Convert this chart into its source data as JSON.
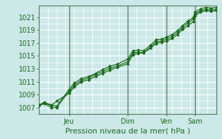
{
  "bg_color": "#cce8e8",
  "plot_bg_color": "#cce8e8",
  "grid_color": "#ffffff",
  "vgrid_color": "#c8d8d8",
  "line_color": "#1a6b1a",
  "marker_color": "#1a6b1a",
  "xlabel": "Pression niveau de la mer( hPa )",
  "xlabel_fontsize": 8,
  "ylabel_fontsize": 7,
  "tick_label_color": "#1a6b1a",
  "yticks": [
    1007,
    1009,
    1011,
    1013,
    1015,
    1017,
    1019,
    1021
  ],
  "ylim": [
    1006.0,
    1022.8
  ],
  "xlim": [
    0,
    100
  ],
  "vline_positions": [
    17,
    50,
    72,
    88
  ],
  "vline_labels": [
    "Jeu",
    "Dim",
    "Ven",
    "Sam"
  ],
  "vline_color": "#557755",
  "series1": [
    [
      0,
      1007.3
    ],
    [
      3,
      1007.7
    ],
    [
      7,
      1007.3
    ],
    [
      10,
      1008.0
    ],
    [
      17,
      1009.2
    ],
    [
      20,
      1010.2
    ],
    [
      24,
      1011.0
    ],
    [
      28,
      1011.3
    ],
    [
      32,
      1011.8
    ],
    [
      36,
      1012.3
    ],
    [
      40,
      1012.8
    ],
    [
      44,
      1013.2
    ],
    [
      50,
      1013.8
    ],
    [
      53,
      1015.2
    ],
    [
      56,
      1015.4
    ],
    [
      59,
      1015.5
    ],
    [
      63,
      1016.2
    ],
    [
      66,
      1016.9
    ],
    [
      69,
      1017.1
    ],
    [
      72,
      1017.3
    ],
    [
      75,
      1017.7
    ],
    [
      78,
      1018.3
    ],
    [
      81,
      1019.1
    ],
    [
      84,
      1019.7
    ],
    [
      87,
      1020.3
    ],
    [
      88,
      1021.2
    ],
    [
      91,
      1021.8
    ],
    [
      94,
      1022.0
    ],
    [
      97,
      1021.9
    ],
    [
      100,
      1022.0
    ]
  ],
  "series2": [
    [
      0,
      1007.3
    ],
    [
      3,
      1007.6
    ],
    [
      7,
      1007.0
    ],
    [
      10,
      1007.0
    ],
    [
      17,
      1009.5
    ],
    [
      20,
      1010.5
    ],
    [
      24,
      1011.2
    ],
    [
      28,
      1011.6
    ],
    [
      32,
      1012.1
    ],
    [
      36,
      1012.6
    ],
    [
      40,
      1013.1
    ],
    [
      44,
      1013.4
    ],
    [
      50,
      1014.1
    ],
    [
      53,
      1015.5
    ],
    [
      56,
      1015.6
    ],
    [
      59,
      1015.5
    ],
    [
      63,
      1016.4
    ],
    [
      66,
      1017.2
    ],
    [
      69,
      1017.3
    ],
    [
      72,
      1017.6
    ],
    [
      75,
      1018.0
    ],
    [
      78,
      1018.6
    ],
    [
      81,
      1019.4
    ],
    [
      84,
      1020.1
    ],
    [
      87,
      1020.7
    ],
    [
      88,
      1021.5
    ],
    [
      91,
      1022.0
    ],
    [
      94,
      1022.2
    ],
    [
      97,
      1022.1
    ],
    [
      100,
      1022.2
    ]
  ],
  "series3": [
    [
      0,
      1007.4
    ],
    [
      3,
      1007.8
    ],
    [
      7,
      1007.4
    ],
    [
      10,
      1007.2
    ],
    [
      17,
      1009.8
    ],
    [
      20,
      1010.8
    ],
    [
      24,
      1011.5
    ],
    [
      28,
      1011.8
    ],
    [
      32,
      1012.3
    ],
    [
      36,
      1012.9
    ],
    [
      40,
      1013.4
    ],
    [
      44,
      1013.7
    ],
    [
      50,
      1014.5
    ],
    [
      53,
      1015.8
    ],
    [
      56,
      1015.9
    ],
    [
      59,
      1015.8
    ],
    [
      63,
      1016.7
    ],
    [
      66,
      1017.5
    ],
    [
      69,
      1017.6
    ],
    [
      72,
      1017.9
    ],
    [
      75,
      1018.3
    ],
    [
      78,
      1018.9
    ],
    [
      81,
      1019.7
    ],
    [
      84,
      1020.4
    ],
    [
      87,
      1021.0
    ],
    [
      88,
      1021.8
    ],
    [
      91,
      1022.3
    ],
    [
      94,
      1022.5
    ],
    [
      97,
      1022.4
    ],
    [
      100,
      1022.5
    ]
  ]
}
